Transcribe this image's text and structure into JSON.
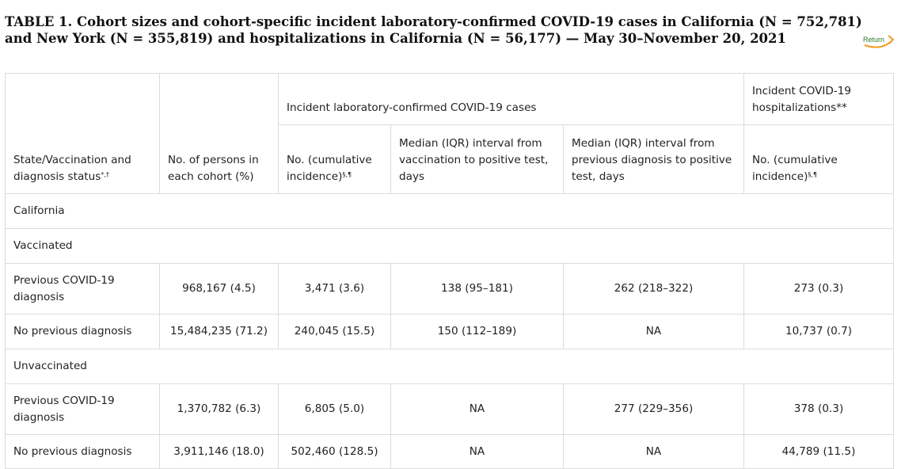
{
  "caption": "TABLE 1. Cohort sizes and cohort-specific incident laboratory-confirmed COVID-19 cases in California (N = 752,781) and New York (N = 355,819) and hospitalizations in California (N = 56,177) — May 30–November 20, 2021",
  "return_link": "Return",
  "header": {
    "group_cases": "Incident laboratory-confirmed COVID-19 cases",
    "group_hosp": "Incident COVID-19 hospitalizations**",
    "col_status": "State/Vaccination and diagnosis status",
    "col_status_sup": "*,†",
    "col_persons": "No. of persons in each cohort (%)",
    "col_cases_no": "No. (cumulative incidence)",
    "col_cases_no_sup": "§,¶",
    "col_median_vacc": "Median (IQR) interval from vaccination to positive test, days",
    "col_median_diag": "Median (IQR) interval from previous diagnosis to positive test, days",
    "col_hosp_no": "No. (cumulative incidence)",
    "col_hosp_no_sup": "§,¶"
  },
  "rows": {
    "california": "California",
    "vaccinated": "Vaccinated",
    "unvaccinated": "Unvaccinated",
    "vacc_prev": [
      "Previous COVID-19 diagnosis",
      "968,167 (4.5)",
      "3,471 (3.6)",
      "138 (95–181)",
      "262 (218–322)",
      "273 (0.3)"
    ],
    "vacc_noprev": [
      "No previous diagnosis",
      "15,484,235 (71.2)",
      "240,045 (15.5)",
      "150 (112–189)",
      "NA",
      "10,737 (0.7)"
    ],
    "unvacc_prev": [
      "Previous COVID-19 diagnosis",
      "1,370,782 (6.3)",
      "6,805 (5.0)",
      "NA",
      "277 (229–356)",
      "378 (0.3)"
    ],
    "unvacc_noprev": [
      "No previous diagnosis",
      "3,911,146 (18.0)",
      "502,460 (128.5)",
      "NA",
      "NA",
      "44,789 (11.5)"
    ]
  }
}
